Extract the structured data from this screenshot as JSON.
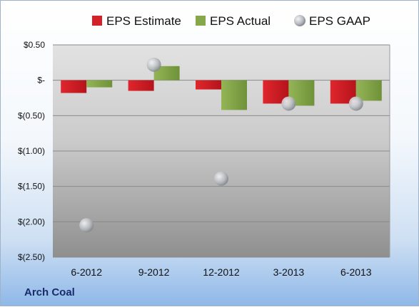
{
  "company": "Arch Coal",
  "chart_data": {
    "type": "bar",
    "categories": [
      "6-2012",
      "9-2012",
      "12-2012",
      "3-2013",
      "6-2013"
    ],
    "series": [
      {
        "name": "EPS Estimate",
        "type": "bar",
        "color": "#d42027",
        "values": [
          -0.18,
          -0.15,
          -0.13,
          -0.33,
          -0.33
        ]
      },
      {
        "name": "EPS Actual",
        "type": "bar",
        "color": "#86a84a",
        "values": [
          -0.1,
          0.2,
          -0.42,
          -0.36,
          -0.29
        ]
      },
      {
        "name": "EPS GAAP",
        "type": "scatter",
        "color": "#b8bcc2",
        "values": [
          -2.05,
          0.22,
          -1.39,
          -0.33,
          -0.33
        ]
      }
    ],
    "y_ticks": [
      "$0.50",
      "$-",
      "$(0.50)",
      "$(1.00)",
      "$(1.50)",
      "$(2.00)",
      "$(2.50)"
    ],
    "ylim": [
      -2.5,
      0.5
    ],
    "grid": true,
    "legend_position": "top"
  }
}
